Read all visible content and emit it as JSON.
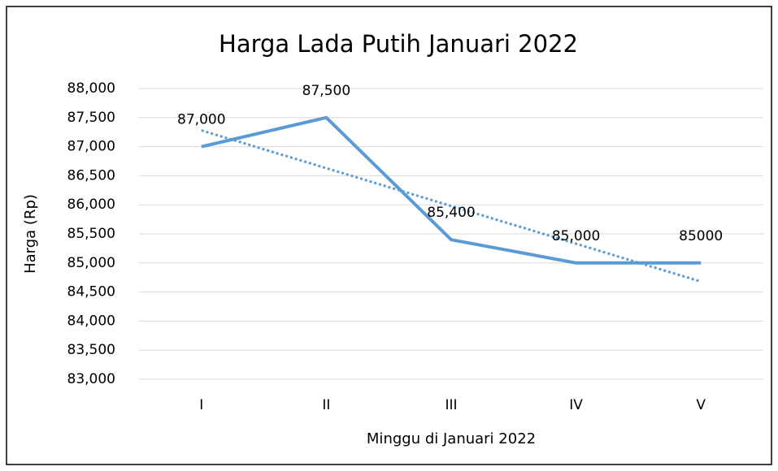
{
  "chart_data": {
    "type": "line",
    "title": "Harga Lada Putih Januari 2022",
    "x_label": "Minggu di Januari 2022",
    "y_label": "Harga (Rp)",
    "categories": [
      "I",
      "II",
      "III",
      "IV",
      "V"
    ],
    "series": [
      {
        "name": "Harga",
        "color": "#5b9bd5",
        "values": [
          87000,
          87500,
          85400,
          85000,
          85000
        ],
        "value_labels": [
          "87,000",
          "87,500",
          "85,400",
          "85,000",
          "85000"
        ]
      }
    ],
    "ylim": [
      83000,
      88000
    ],
    "yticks": [
      {
        "value": 83000,
        "label": "83,000"
      },
      {
        "value": 83500,
        "label": "83,500"
      },
      {
        "value": 84000,
        "label": "84,000"
      },
      {
        "value": 84500,
        "label": "84,500"
      },
      {
        "value": 85000,
        "label": "85,000"
      },
      {
        "value": 85500,
        "label": "85,500"
      },
      {
        "value": 86000,
        "label": "86,000"
      },
      {
        "value": 86500,
        "label": "86,500"
      },
      {
        "value": 87000,
        "label": "87,000"
      },
      {
        "value": 87500,
        "label": "87,500"
      },
      {
        "value": 88000,
        "label": "88,000"
      }
    ],
    "grid": true,
    "trendline": true
  }
}
